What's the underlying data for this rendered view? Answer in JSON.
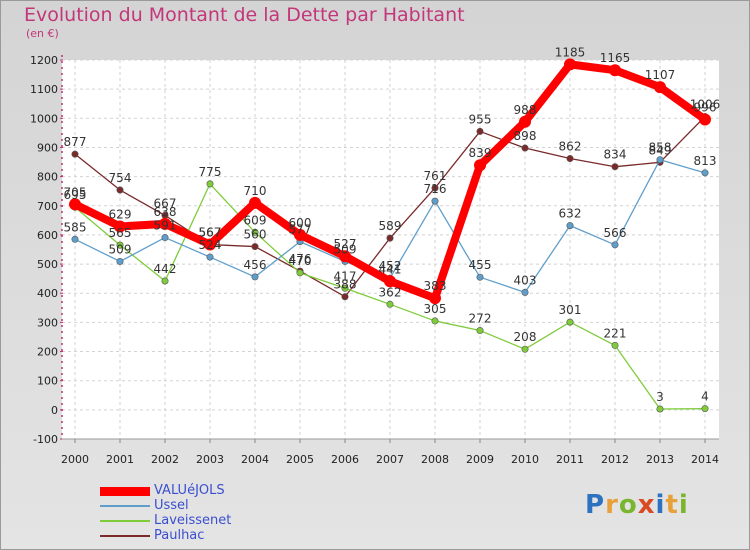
{
  "chart_data": {
    "type": "line",
    "title": "Evolution du Montant de la Dette par Habitant",
    "subtitle": "(en €)",
    "x": [
      "2000",
      "2001",
      "2002",
      "2003",
      "2004",
      "2005",
      "2006",
      "2007",
      "2008",
      "2009",
      "2010",
      "2011",
      "2012",
      "2013",
      "2014"
    ],
    "ylim": [
      -100,
      1200
    ],
    "yticks": [
      -100,
      0,
      100,
      200,
      300,
      400,
      500,
      600,
      700,
      800,
      900,
      1000,
      1100,
      1200
    ],
    "grid": true,
    "legend_position": "bottom-left",
    "series": [
      {
        "name": "VALUéJOLS",
        "color": "#ff0000",
        "values": [
          705,
          629,
          638,
          567,
          710,
          600,
          527,
          441,
          383,
          839,
          988,
          1185,
          1165,
          1107,
          996
        ]
      },
      {
        "name": "Ussel",
        "color": "#5f9ecb",
        "values": [
          585,
          509,
          591,
          524,
          456,
          577,
          509,
          452,
          716,
          455,
          403,
          632,
          566,
          858,
          813
        ]
      },
      {
        "name": "Laveissenet",
        "color": "#7fcc3a",
        "values": [
          695,
          565,
          442,
          775,
          609,
          470,
          417,
          362,
          305,
          272,
          208,
          301,
          221,
          3,
          4
        ]
      },
      {
        "name": "Paulhac",
        "color": "#7a2a2a",
        "values": [
          877,
          754,
          667,
          567,
          560,
          476,
          388,
          589,
          761,
          955,
          898,
          862,
          834,
          849,
          1006
        ]
      }
    ]
  },
  "logo": {
    "text": "Proxiti",
    "letters": [
      {
        "c": "P",
        "color": "#2c72c0"
      },
      {
        "c": "r",
        "color": "#e8a13a"
      },
      {
        "c": "o",
        "color": "#7ab530"
      },
      {
        "c": "x",
        "color": "#d94a22"
      },
      {
        "c": "i",
        "color": "#2c72c0"
      },
      {
        "c": "t",
        "color": "#e8a13a"
      },
      {
        "c": "i",
        "color": "#7ab530"
      }
    ]
  }
}
